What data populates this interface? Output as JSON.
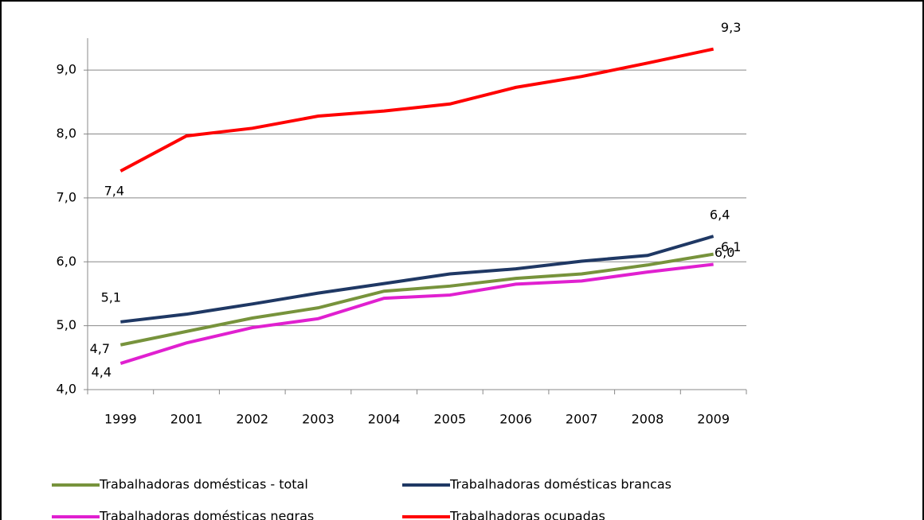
{
  "chart_data": {
    "type": "line",
    "categories": [
      "1999",
      "2001",
      "2002",
      "2003",
      "2004",
      "2005",
      "2006",
      "2007",
      "2008",
      "2009"
    ],
    "series": [
      {
        "name": "Trabalhadoras domésticas - total",
        "color": "#77933c",
        "values": [
          4.7,
          4.91,
          5.12,
          5.28,
          5.54,
          5.62,
          5.74,
          5.81,
          5.95,
          6.12
        ],
        "value_labels": [
          "4,7",
          null,
          null,
          null,
          null,
          null,
          null,
          null,
          null,
          "6,1"
        ]
      },
      {
        "name": "Trabalhadoras domésticas brancas",
        "color": "#1f3864",
        "values": [
          5.06,
          5.18,
          5.34,
          5.51,
          5.66,
          5.81,
          5.89,
          6.01,
          6.1,
          6.4
        ],
        "value_labels": [
          "5,1",
          null,
          null,
          null,
          null,
          null,
          null,
          null,
          null,
          "6,4"
        ]
      },
      {
        "name": "Trabalhadoras domésticas negras",
        "color": "#e020d0",
        "values": [
          4.41,
          4.73,
          4.97,
          5.11,
          5.43,
          5.48,
          5.65,
          5.7,
          5.84,
          5.96
        ],
        "value_labels": [
          "4,4",
          null,
          null,
          null,
          null,
          null,
          null,
          null,
          null,
          "6,0"
        ]
      },
      {
        "name": "Trabalhadoras ocupadas",
        "color": "#ff0000",
        "values": [
          7.42,
          7.97,
          8.09,
          8.28,
          8.36,
          8.47,
          8.73,
          8.9,
          9.11,
          9.33
        ],
        "value_labels": [
          "7,4",
          null,
          null,
          null,
          null,
          null,
          null,
          null,
          null,
          "9,3"
        ]
      }
    ],
    "ylim": [
      4,
      9.5
    ],
    "yticks": [
      {
        "value": 4,
        "label": "4,0"
      },
      {
        "value": 5,
        "label": "5,0"
      },
      {
        "value": 6,
        "label": "6,0"
      },
      {
        "value": 7,
        "label": "7,0"
      },
      {
        "value": 8,
        "label": "8,0"
      },
      {
        "value": 9,
        "label": "9,0"
      }
    ],
    "grid": true
  }
}
